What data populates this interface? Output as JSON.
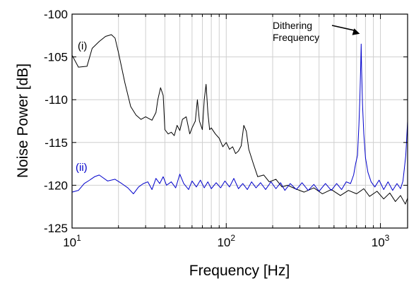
{
  "chart_data": {
    "type": "line",
    "title": "",
    "xlabel": "Frequency [Hz]",
    "ylabel": "Noise Power [dB]",
    "xscale": "log",
    "xlim": [
      10,
      1500
    ],
    "ylim": [
      -125,
      -100
    ],
    "grid": true,
    "y_ticks": [
      -100,
      -105,
      -110,
      -115,
      -120,
      -125
    ],
    "y_tick_labels": [
      "-100",
      "-105",
      "-110",
      "-115",
      "-120",
      "-125"
    ],
    "x_ticks": [
      {
        "value": 10,
        "base": "10",
        "exp": "1"
      },
      {
        "value": 100,
        "base": "10",
        "exp": "2"
      },
      {
        "value": 1000,
        "base": "10",
        "exp": "3"
      }
    ],
    "annotation": {
      "line1": "Dithering",
      "line2": "Frequency",
      "points_to": [
        750,
        -103.5
      ]
    },
    "series": [
      {
        "label": "(i)",
        "color": "#000000",
        "points": [
          [
            10,
            -104.8
          ],
          [
            11,
            -106.2
          ],
          [
            12.5,
            -106.1
          ],
          [
            13.5,
            -104.0
          ],
          [
            15,
            -103.2
          ],
          [
            16.5,
            -102.6
          ],
          [
            18,
            -102.4
          ],
          [
            19,
            -102.8
          ],
          [
            20,
            -104.5
          ],
          [
            22,
            -108.0
          ],
          [
            24,
            -110.8
          ],
          [
            26,
            -111.8
          ],
          [
            28,
            -112.3
          ],
          [
            30,
            -112.0
          ],
          [
            33,
            -112.4
          ],
          [
            35,
            -111.5
          ],
          [
            36,
            -110.0
          ],
          [
            37.5,
            -108.6
          ],
          [
            39,
            -109.5
          ],
          [
            40,
            -113.5
          ],
          [
            42,
            -114.0
          ],
          [
            44,
            -113.8
          ],
          [
            46,
            -114.2
          ],
          [
            48,
            -113.0
          ],
          [
            50,
            -113.6
          ],
          [
            52,
            -112.3
          ],
          [
            55,
            -112.0
          ],
          [
            58,
            -114.0
          ],
          [
            60,
            -113.3
          ],
          [
            63,
            -112.5
          ],
          [
            65,
            -110.0
          ],
          [
            67,
            -112.5
          ],
          [
            70,
            -113.5
          ],
          [
            72,
            -110.0
          ],
          [
            74,
            -108.2
          ],
          [
            76,
            -111.5
          ],
          [
            78,
            -113.5
          ],
          [
            80,
            -113.3
          ],
          [
            85,
            -114.0
          ],
          [
            90,
            -114.5
          ],
          [
            95,
            -115.5
          ],
          [
            100,
            -115.0
          ],
          [
            105,
            -115.8
          ],
          [
            110,
            -115.5
          ],
          [
            115,
            -116.3
          ],
          [
            120,
            -116.0
          ],
          [
            125,
            -115.4
          ],
          [
            130,
            -113.0
          ],
          [
            135,
            -113.7
          ],
          [
            140,
            -115.8
          ],
          [
            150,
            -117.5
          ],
          [
            160,
            -119.0
          ],
          [
            175,
            -118.8
          ],
          [
            190,
            -119.6
          ],
          [
            210,
            -119.3
          ],
          [
            230,
            -120.2
          ],
          [
            250,
            -120.0
          ],
          [
            280,
            -120.4
          ],
          [
            320,
            -120.8
          ],
          [
            370,
            -120.3
          ],
          [
            420,
            -121.0
          ],
          [
            480,
            -120.5
          ],
          [
            550,
            -121.2
          ],
          [
            620,
            -120.6
          ],
          [
            700,
            -121.0
          ],
          [
            780,
            -120.4
          ],
          [
            850,
            -121.3
          ],
          [
            950,
            -120.7
          ],
          [
            1050,
            -121.6
          ],
          [
            1150,
            -120.9
          ],
          [
            1250,
            -121.9
          ],
          [
            1350,
            -121.2
          ],
          [
            1450,
            -122.2
          ],
          [
            1500,
            -121.5
          ]
        ]
      },
      {
        "label": "(ii)",
        "color": "#0000cc",
        "points": [
          [
            10,
            -120.8
          ],
          [
            11,
            -120.6
          ],
          [
            12,
            -119.8
          ],
          [
            13,
            -119.4
          ],
          [
            14,
            -119.0
          ],
          [
            15,
            -118.8
          ],
          [
            17,
            -119.5
          ],
          [
            19,
            -119.3
          ],
          [
            21,
            -119.8
          ],
          [
            23,
            -120.3
          ],
          [
            25,
            -121.0
          ],
          [
            27,
            -120.2
          ],
          [
            29,
            -119.8
          ],
          [
            31,
            -119.6
          ],
          [
            33,
            -120.5
          ],
          [
            35,
            -119.2
          ],
          [
            37,
            -119.8
          ],
          [
            39,
            -119.0
          ],
          [
            41,
            -120.0
          ],
          [
            44,
            -119.6
          ],
          [
            47,
            -120.3
          ],
          [
            50,
            -118.7
          ],
          [
            53,
            -119.8
          ],
          [
            57,
            -120.5
          ],
          [
            60,
            -119.5
          ],
          [
            64,
            -120.2
          ],
          [
            68,
            -119.4
          ],
          [
            72,
            -120.3
          ],
          [
            76,
            -119.6
          ],
          [
            80,
            -120.4
          ],
          [
            86,
            -119.7
          ],
          [
            92,
            -120.3
          ],
          [
            98,
            -119.5
          ],
          [
            105,
            -120.2
          ],
          [
            112,
            -119.2
          ],
          [
            120,
            -120.4
          ],
          [
            128,
            -119.8
          ],
          [
            137,
            -120.5
          ],
          [
            146,
            -119.6
          ],
          [
            156,
            -120.3
          ],
          [
            167,
            -119.7
          ],
          [
            180,
            -120.5
          ],
          [
            195,
            -119.6
          ],
          [
            210,
            -120.4
          ],
          [
            225,
            -119.7
          ],
          [
            240,
            -120.6
          ],
          [
            260,
            -119.8
          ],
          [
            285,
            -120.5
          ],
          [
            310,
            -119.7
          ],
          [
            340,
            -120.6
          ],
          [
            370,
            -119.9
          ],
          [
            400,
            -120.7
          ],
          [
            440,
            -119.8
          ],
          [
            480,
            -120.6
          ],
          [
            520,
            -119.8
          ],
          [
            560,
            -120.5
          ],
          [
            600,
            -119.6
          ],
          [
            640,
            -119.8
          ],
          [
            670,
            -118.8
          ],
          [
            690,
            -117.5
          ],
          [
            710,
            -116.5
          ],
          [
            725,
            -113.0
          ],
          [
            735,
            -110.0
          ],
          [
            745,
            -106.0
          ],
          [
            750,
            -103.5
          ],
          [
            755,
            -106.5
          ],
          [
            765,
            -110.5
          ],
          [
            780,
            -114.0
          ],
          [
            800,
            -116.8
          ],
          [
            830,
            -118.5
          ],
          [
            870,
            -119.6
          ],
          [
            920,
            -120.2
          ],
          [
            980,
            -119.4
          ],
          [
            1050,
            -120.5
          ],
          [
            1120,
            -119.6
          ],
          [
            1200,
            -120.6
          ],
          [
            1280,
            -119.8
          ],
          [
            1350,
            -120.4
          ],
          [
            1400,
            -119.5
          ],
          [
            1430,
            -118.0
          ],
          [
            1460,
            -116.5
          ],
          [
            1480,
            -114.5
          ],
          [
            1500,
            -112.5
          ]
        ]
      }
    ]
  }
}
